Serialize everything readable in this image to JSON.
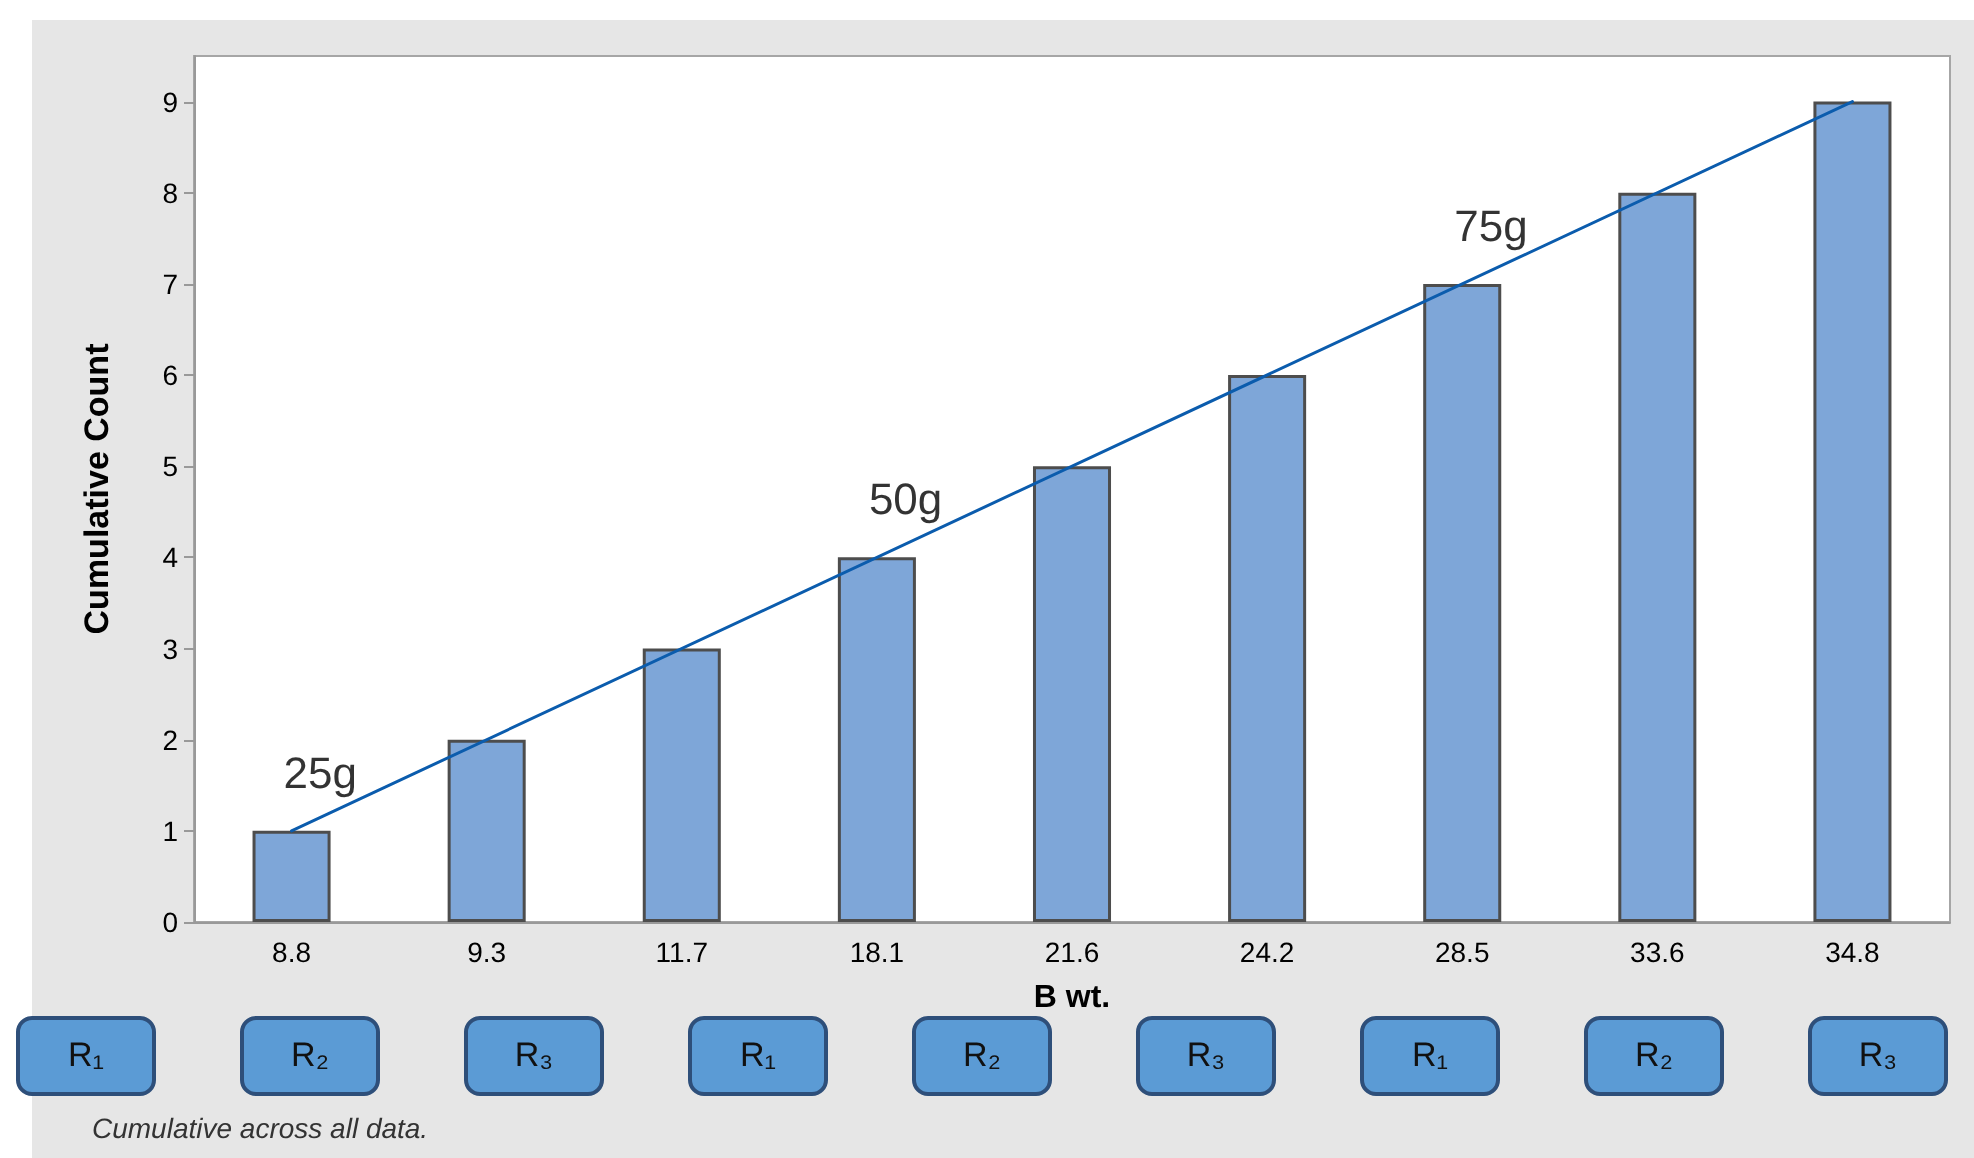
{
  "chart_data": {
    "type": "bar",
    "xlabel": "B wt.",
    "ylabel": "Cumulative Count",
    "categories": [
      "8.8",
      "9.3",
      "11.7",
      "18.1",
      "21.6",
      "24.2",
      "28.5",
      "33.6",
      "34.8"
    ],
    "series": [
      {
        "color": "#7ea6d8",
        "values": [
          1,
          2,
          3,
          4,
          5,
          6,
          7,
          8,
          9
        ]
      },
      {
        "type": "line",
        "color": "#0b5cad",
        "x": [
          "8.8",
          "34.8"
        ],
        "values": [
          1,
          9
        ],
        "marker": "none"
      }
    ],
    "ylim": [
      0,
      9.5
    ],
    "yticks": [
      0,
      1,
      2,
      3,
      4,
      5,
      6,
      7,
      8,
      9
    ],
    "grid": false,
    "annotations": [
      {
        "text": "25g",
        "x": "8.8",
        "y": 1
      },
      {
        "text": "50g",
        "x": "18.1",
        "y": 4
      },
      {
        "text": "75g",
        "x": "28.5",
        "y": 7
      },
      "R₁",
      "R₂",
      "R₃",
      "R₁",
      "R₂",
      "R₃",
      "R₁",
      "R₂",
      "R₃",
      "Cumulative across all data."
    ]
  }
}
